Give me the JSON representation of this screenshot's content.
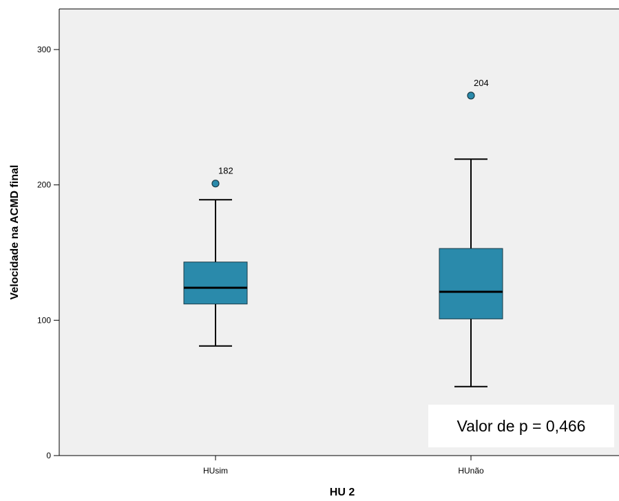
{
  "chart_data": {
    "type": "boxplot",
    "xlabel": "HU 2",
    "ylabel": "Velocidade na ACMD final",
    "ylim": [
      0,
      330
    ],
    "yticks": [
      0,
      100,
      200,
      300
    ],
    "grid": false,
    "colors": {
      "plot_background": "#f0f0f0",
      "box_fill": "#2a8aab",
      "stroke": "#000000"
    },
    "categories": [
      "HUsim",
      "HUnão"
    ],
    "boxes": [
      {
        "category": "HUsim",
        "whisker_low": 81,
        "q1": 112,
        "median": 124,
        "q3": 143,
        "whisker_high": 189,
        "outliers": [
          {
            "value": 201,
            "label": "182"
          }
        ]
      },
      {
        "category": "HUnão",
        "whisker_low": 51,
        "q1": 101,
        "median": 121,
        "q3": 153,
        "whisker_high": 219,
        "outliers": [
          {
            "value": 266,
            "label": "204"
          }
        ]
      }
    ],
    "annotation": "Valor de p = 0,466"
  }
}
